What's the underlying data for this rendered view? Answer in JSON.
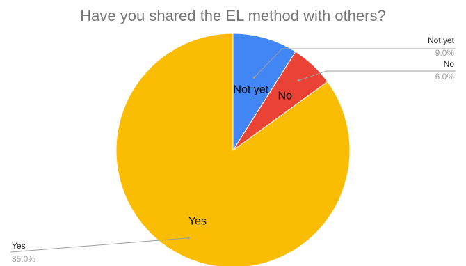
{
  "chart_data": {
    "type": "pie",
    "title": "Have you shared the EL method with others?",
    "slices": [
      {
        "label": "Not yet",
        "value": 9.0,
        "percent_label": "9.0%",
        "color": "#4285F4"
      },
      {
        "label": "No",
        "value": 6.0,
        "percent_label": "6.0%",
        "color": "#EA4335"
      },
      {
        "label": "Yes",
        "value": 85.0,
        "percent_label": "85.0%",
        "color": "#FBBC04"
      }
    ],
    "legend": "none (callout labels)"
  }
}
